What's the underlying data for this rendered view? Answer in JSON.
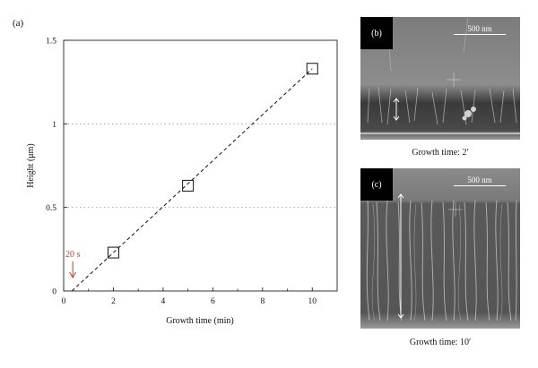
{
  "panel_a_label": "(a)",
  "chart_data": {
    "type": "scatter",
    "xlabel": "Growth time (min)",
    "ylabel": "Height (μm)",
    "xlim": [
      0,
      11
    ],
    "ylim": [
      0,
      1.5
    ],
    "xticks": [
      0,
      2,
      4,
      6,
      8,
      10
    ],
    "yticks": [
      0,
      0.5,
      1,
      1.5
    ],
    "ytick_labels": [
      "0",
      "0.5",
      "1",
      "1.5"
    ],
    "grid": "dotted horizontal at 0.5 and 1",
    "series": [
      {
        "marker": "open-square",
        "x": [
          2,
          5,
          10
        ],
        "y": [
          0.23,
          0.63,
          1.33
        ]
      }
    ],
    "fit_line": {
      "style": "dashed",
      "x": [
        0.33,
        10
      ],
      "y": [
        0,
        1.33
      ]
    },
    "annotation": {
      "text": "20 s",
      "color": "#d03a2a",
      "x": 0.33
    }
  },
  "panel_b": {
    "label": "(b)",
    "scale_text": "500 nm",
    "caption": "Growth time: 2′"
  },
  "panel_c": {
    "label": "(c)",
    "scale_text": "500 nm",
    "caption": "Growth time: 10′"
  }
}
